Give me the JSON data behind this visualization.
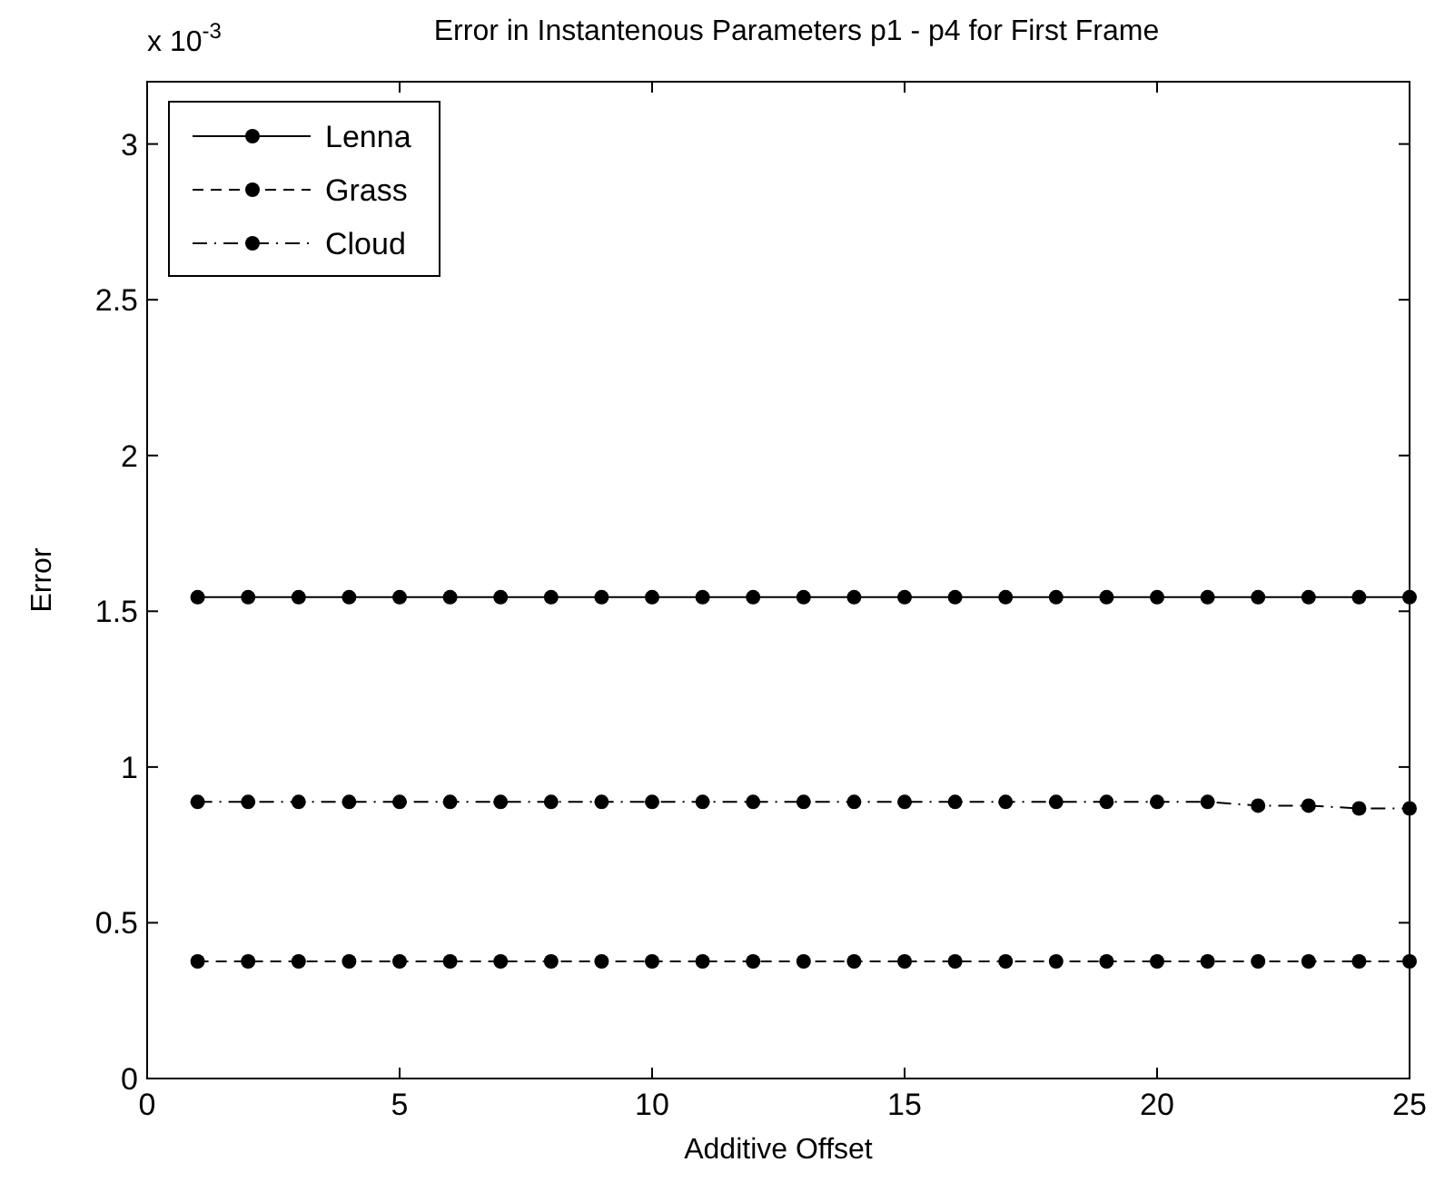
{
  "chart_data": {
    "type": "line",
    "title": "Error in Instantenous Parameters p1 - p4 for First Frame",
    "xlabel": "Additive Offset",
    "ylabel": "Error",
    "annotations": [
      "x 10$^{-3}$"
    ],
    "x": [
      1,
      2,
      3,
      4,
      5,
      6,
      7,
      8,
      9,
      10,
      11,
      12,
      13,
      14,
      15,
      16,
      17,
      18,
      19,
      20,
      21,
      22,
      23,
      24,
      25
    ],
    "series": [
      {
        "name": "Lenna",
        "color": "#000000",
        "line_style": "solid",
        "values": [
          1.545,
          1.545,
          1.545,
          1.545,
          1.545,
          1.545,
          1.545,
          1.545,
          1.545,
          1.545,
          1.545,
          1.545,
          1.545,
          1.545,
          1.545,
          1.545,
          1.545,
          1.545,
          1.545,
          1.545,
          1.545,
          1.545,
          1.545,
          1.545,
          1.545
        ]
      },
      {
        "name": "Grass",
        "color": "#000000",
        "line_style": "dashed",
        "values": [
          0.376,
          0.376,
          0.376,
          0.376,
          0.376,
          0.376,
          0.376,
          0.376,
          0.376,
          0.376,
          0.376,
          0.376,
          0.376,
          0.376,
          0.376,
          0.376,
          0.376,
          0.376,
          0.376,
          0.376,
          0.376,
          0.376,
          0.376,
          0.376,
          0.376
        ]
      },
      {
        "name": "Cloud",
        "color": "#000000",
        "line_style": "dashdot",
        "values": [
          0.888,
          0.888,
          0.888,
          0.888,
          0.888,
          0.888,
          0.888,
          0.888,
          0.888,
          0.888,
          0.888,
          0.888,
          0.888,
          0.888,
          0.888,
          0.888,
          0.888,
          0.888,
          0.888,
          0.888,
          0.888,
          0.876,
          0.876,
          0.867,
          0.867
        ]
      }
    ],
    "xlim": [
      0,
      25
    ],
    "xticks": [
      0,
      5,
      10,
      15,
      20,
      25
    ],
    "ylim": [
      0,
      3.2
    ],
    "yticks": [
      0,
      0.5,
      1,
      1.5,
      2,
      2.5,
      3
    ],
    "marker": "circle",
    "legend": "top left",
    "grid": false
  }
}
